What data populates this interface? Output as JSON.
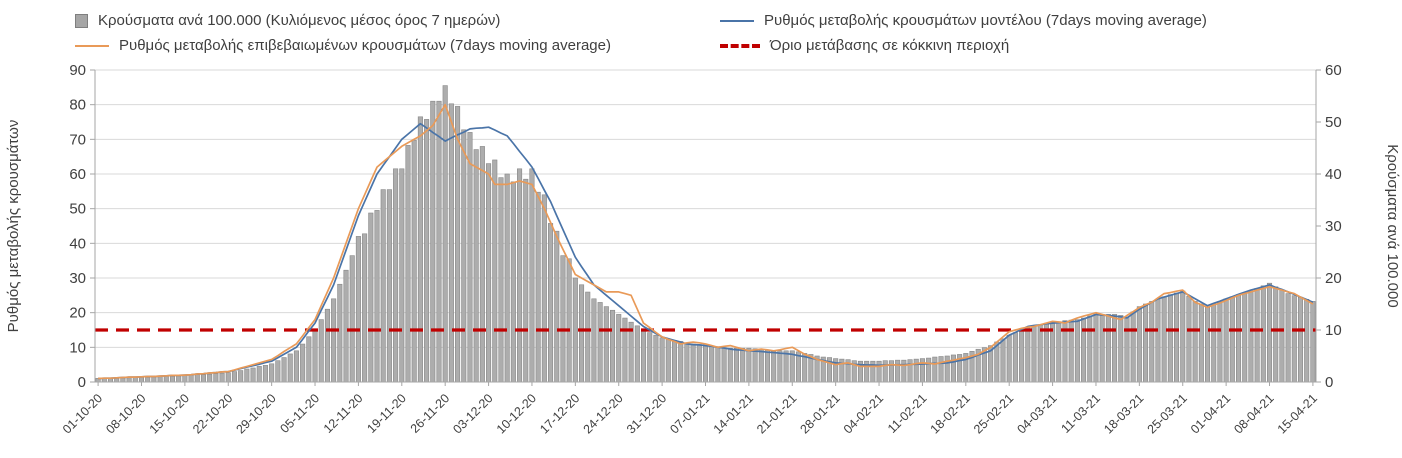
{
  "colors": {
    "bars": "#adadad",
    "bars_border": "#878787",
    "model_line": "#4a74a8",
    "confirmed_line": "#e99a58",
    "threshold": "#c00000",
    "grid": "#d9d9d9",
    "axis": "#a6a6a6",
    "text": "#404040"
  },
  "legend": {
    "items": [
      {
        "label": "Κρούσματα ανά 100.000 (Κυλιόμενος μέσος όρος 7 ημερών)",
        "type": "bar",
        "color": "#a6a6a6"
      },
      {
        "label": "Ρυθμός μεταβολής κρουσμάτων μοντέλου (7days moving average)",
        "type": "line",
        "color": "#4a74a8"
      },
      {
        "label": "Ρυθμός μεταβολής επιβεβαιωμένων κρουσμάτων (7days moving average)",
        "type": "line",
        "color": "#e99a58"
      },
      {
        "label": "Όριο μετάβασης σε κόκκινη περιοχή",
        "type": "dashed-line",
        "color": "#c00000"
      }
    ]
  },
  "chart_data": {
    "type": "combo-bar-line",
    "grid": true,
    "legend_position": "top",
    "left_axis": {
      "label": "Ρυθμός μεταβολής κρουσμάτων",
      "min": 0,
      "max": 90,
      "step": 10
    },
    "right_axis": {
      "label": "Κρούσματα ανά 100.000",
      "min": 0,
      "max": 60,
      "step": 10
    },
    "threshold": {
      "name": "Όριο μετάβασης σε κόκκινη περιοχή",
      "value_left_axis": 15
    },
    "x_tick_labels": [
      "01-10-20",
      "08-10-20",
      "15-10-20",
      "22-10-20",
      "29-10-20",
      "05-11-20",
      "12-11-20",
      "19-11-20",
      "26-11-20",
      "03-12-20",
      "10-12-20",
      "17-12-20",
      "24-12-20",
      "31-12-20",
      "07-01-21",
      "14-01-21",
      "21-01-21",
      "28-01-21",
      "04-02-21",
      "11-02-21",
      "18-02-21",
      "25-02-21",
      "04-03-21",
      "11-03-21",
      "18-03-21",
      "25-03-21",
      "01-04-21",
      "08-04-21",
      "15-04-21"
    ],
    "days_per_tick": 7,
    "series": [
      {
        "name": "Κρούσματα ανά 100.000 (Κυλιόμενος μέσος όρος 7 ημερών)",
        "type": "bar",
        "axis": "right",
        "values": [
          0.7,
          0.7,
          0.8,
          0.7,
          0.8,
          0.8,
          0.9,
          0.9,
          0.9,
          1.0,
          1.0,
          1.1,
          1.1,
          1.2,
          1.3,
          1.3,
          1.4,
          1.4,
          1.5,
          1.6,
          1.7,
          1.8,
          2.0,
          2.2,
          2.5,
          2.7,
          3.0,
          3.2,
          3.5,
          4.1,
          4.7,
          5.4,
          6.0,
          7.3,
          8.7,
          10.0,
          12.0,
          14.0,
          16.0,
          18.8,
          21.5,
          24.3,
          28.0,
          28.5,
          32.5,
          33.0,
          37.0,
          37.0,
          41.0,
          41.0,
          45.5,
          46.5,
          51.0,
          50.5,
          54.0,
          54.0,
          57.0,
          53.5,
          53.0,
          48.5,
          48.0,
          44.7,
          45.3,
          42.0,
          42.7,
          39.3,
          40.0,
          38.5,
          41.0,
          39.0,
          41.0,
          36.5,
          36.0,
          30.5,
          29.0,
          24.3,
          23.7,
          20.0,
          18.7,
          17.3,
          16.0,
          15.3,
          14.5,
          13.8,
          13.0,
          12.3,
          11.5,
          10.8,
          10.0,
          9.5,
          9.0,
          8.5,
          8.3,
          8.0,
          7.8,
          7.5,
          7.3,
          7.2,
          7.0,
          6.9,
          6.8,
          6.6,
          6.5,
          6.5,
          6.5,
          6.5,
          6.4,
          6.3,
          6.1,
          6.0,
          6.0,
          6.0,
          6.0,
          5.8,
          5.5,
          5.3,
          5.0,
          4.8,
          4.7,
          4.5,
          4.4,
          4.3,
          4.1,
          4.0,
          4.0,
          4.0,
          4.0,
          4.1,
          4.1,
          4.2,
          4.2,
          4.3,
          4.4,
          4.5,
          4.6,
          4.8,
          4.9,
          5.0,
          5.2,
          5.3,
          5.5,
          5.9,
          6.3,
          6.6,
          7.0,
          7.7,
          8.3,
          9.0,
          9.5,
          10.0,
          10.5,
          10.8,
          11.0,
          11.3,
          11.5,
          11.6,
          11.8,
          11.9,
          12.0,
          12.3,
          12.7,
          13.0,
          13.0,
          13.0,
          13.0,
          12.8,
          12.5,
          13.5,
          14.5,
          15.0,
          15.5,
          16.0,
          16.4,
          16.8,
          17.1,
          17.5,
          16.5,
          15.5,
          15.0,
          14.5,
          15.0,
          15.5,
          16.0,
          16.4,
          16.8,
          17.1,
          17.5,
          18.0,
          18.5,
          19.0,
          18.3,
          17.7,
          17.0,
          16.6,
          16.3,
          15.9,
          15.5
        ]
      },
      {
        "name": "Ρυθμός μεταβολής κρουσμάτων μοντέλου (7days moving average)",
        "type": "line",
        "axis": "left",
        "values": [
          1.0,
          1.1,
          1.1,
          1.2,
          1.3,
          1.4,
          1.4,
          1.5,
          1.6,
          1.6,
          1.7,
          1.8,
          1.9,
          1.9,
          2.0,
          2.1,
          2.3,
          2.4,
          2.6,
          2.7,
          2.9,
          3.0,
          3.4,
          3.9,
          4.3,
          4.7,
          5.1,
          5.6,
          6.0,
          7.0,
          8.0,
          9.0,
          10.0,
          12.3,
          14.7,
          17.0,
          20.7,
          24.3,
          28.0,
          33.0,
          38.0,
          43.0,
          48.0,
          52.0,
          56.0,
          60.0,
          62.5,
          65.0,
          67.5,
          70.0,
          71.5,
          73.0,
          74.5,
          73.3,
          72.0,
          70.8,
          69.5,
          70.4,
          71.3,
          72.1,
          73.0,
          73.2,
          73.3,
          73.5,
          72.7,
          71.8,
          71.0,
          68.8,
          66.5,
          64.3,
          62.0,
          58.7,
          55.3,
          52.0,
          48.0,
          44.0,
          40.0,
          36.0,
          33.3,
          30.7,
          28.0,
          26.5,
          25.0,
          23.5,
          22.0,
          20.5,
          19.0,
          17.5,
          16.0,
          15.0,
          14.0,
          13.0,
          12.5,
          12.0,
          11.5,
          11.0,
          10.8,
          10.7,
          10.5,
          10.3,
          10.0,
          9.8,
          9.5,
          9.3,
          9.2,
          9.0,
          8.9,
          8.8,
          8.6,
          8.5,
          8.3,
          8.2,
          8.0,
          7.6,
          7.3,
          6.9,
          6.5,
          6.2,
          5.8,
          5.5,
          5.4,
          5.3,
          5.1,
          5.0,
          4.9,
          4.9,
          4.8,
          4.9,
          4.9,
          5.0,
          5.0,
          5.1,
          5.1,
          5.2,
          5.3,
          5.4,
          5.4,
          5.5,
          5.8,
          6.2,
          6.5,
          7.1,
          7.8,
          8.4,
          9.0,
          10.5,
          12.0,
          13.5,
          14.3,
          15.2,
          16.0,
          16.3,
          16.5,
          16.8,
          17.0,
          17.1,
          17.3,
          17.4,
          17.5,
          18.2,
          18.8,
          19.5,
          19.3,
          19.2,
          19.0,
          18.8,
          18.5,
          19.8,
          21.0,
          22.0,
          23.0,
          24.0,
          24.5,
          25.0,
          25.5,
          26.0,
          25.0,
          24.0,
          23.0,
          22.0,
          22.7,
          23.3,
          24.0,
          24.6,
          25.3,
          25.9,
          26.5,
          27.0,
          27.5,
          28.0,
          27.3,
          26.7,
          26.0,
          25.3,
          24.5,
          23.8,
          23.0
        ]
      },
      {
        "name": "Ρυθμός μεταβολής επιβεβαιωμένων κρουσμάτων (7days moving average)",
        "type": "line",
        "axis": "left",
        "values": [
          1.0,
          1.1,
          1.1,
          1.2,
          1.3,
          1.4,
          1.4,
          1.5,
          1.6,
          1.6,
          1.7,
          1.8,
          1.9,
          1.9,
          2.0,
          2.1,
          2.3,
          2.4,
          2.6,
          2.7,
          2.9,
          3.0,
          3.5,
          4.0,
          4.5,
          5.0,
          5.5,
          6.0,
          6.5,
          7.6,
          8.8,
          9.9,
          11.0,
          13.3,
          15.7,
          18.0,
          22.0,
          26.0,
          30.0,
          35.0,
          40.0,
          45.0,
          50.0,
          54.0,
          58.0,
          62.0,
          63.5,
          65.0,
          66.5,
          68.0,
          69.0,
          70.0,
          71.0,
          72.5,
          74.0,
          77.0,
          80.0,
          75.0,
          70.0,
          66.5,
          63.0,
          62.0,
          61.0,
          60.0,
          57.0,
          57.0,
          57.0,
          57.5,
          58.0,
          57.5,
          57.0,
          53.5,
          50.0,
          46.0,
          42.0,
          38.3,
          34.7,
          31.0,
          30.0,
          29.0,
          28.0,
          27.0,
          26.0,
          26.0,
          26.0,
          25.5,
          25.0,
          21.0,
          17.0,
          15.7,
          14.3,
          13.0,
          12.3,
          11.7,
          11.0,
          11.3,
          11.5,
          11.3,
          11.0,
          10.5,
          10.0,
          10.3,
          10.5,
          10.0,
          9.5,
          9.0,
          9.3,
          9.5,
          9.3,
          9.0,
          9.3,
          9.7,
          10.0,
          9.0,
          8.0,
          7.3,
          6.5,
          6.0,
          5.5,
          5.0,
          5.3,
          5.5,
          5.0,
          4.5,
          4.5,
          4.5,
          4.5,
          4.8,
          5.0,
          4.9,
          4.8,
          5.0,
          5.3,
          5.5,
          5.4,
          5.2,
          5.6,
          6.0,
          6.3,
          6.7,
          7.0,
          7.5,
          8.0,
          9.0,
          10.0,
          11.5,
          13.0,
          14.5,
          15.0,
          15.5,
          15.8,
          16.0,
          16.5,
          17.0,
          17.5,
          17.3,
          17.0,
          17.8,
          18.5,
          19.0,
          19.5,
          20.0,
          19.5,
          19.0,
          18.5,
          18.0,
          19.2,
          20.3,
          21.5,
          22.3,
          23.0,
          24.3,
          25.5,
          25.8,
          26.2,
          26.5,
          24.8,
          23.0,
          22.3,
          21.5,
          22.2,
          22.8,
          23.5,
          24.3,
          25.0,
          25.5,
          26.0,
          26.5,
          27.0,
          27.5,
          27.0,
          26.5,
          26.0,
          25.5,
          24.5,
          23.5,
          22.5
        ]
      }
    ]
  }
}
